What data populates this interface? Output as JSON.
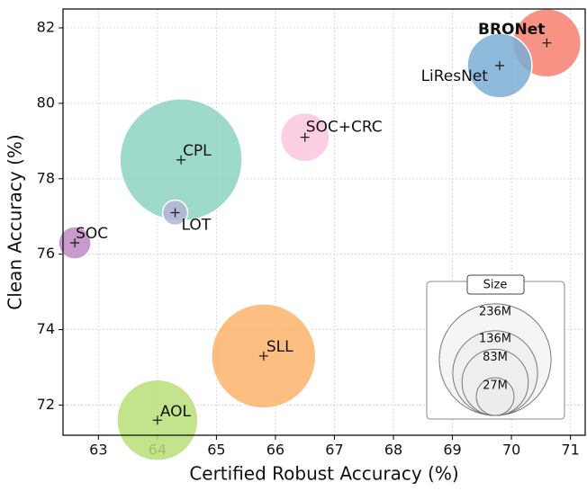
{
  "chart_data": {
    "type": "bubble",
    "xlabel": "Certified Robust Accuracy (%)",
    "ylabel": "Clean Accuracy (%)",
    "xlim": [
      62.4,
      71.25
    ],
    "ylim": [
      71.2,
      82.5
    ],
    "xticks": [
      63,
      64,
      65,
      66,
      67,
      68,
      69,
      70,
      71
    ],
    "yticks": [
      72,
      74,
      76,
      78,
      80,
      82
    ],
    "grid": true,
    "series": [
      {
        "name": "BRONet",
        "color": "#f67f70",
        "x": [
          70.6
        ],
        "values": [
          81.6
        ],
        "sizes": [
          88
        ]
      },
      {
        "name": "LiResNet",
        "color": "#7aaed6",
        "x": [
          69.8
        ],
        "values": [
          81.0
        ],
        "sizes": [
          79
        ]
      },
      {
        "name": "SOC+CRC",
        "color": "#fbc5df",
        "x": [
          66.5
        ],
        "values": [
          79.1
        ],
        "sizes": [
          45
        ]
      },
      {
        "name": "CPL",
        "color": "#8dd3c2",
        "x": [
          64.4
        ],
        "values": [
          78.5
        ],
        "sizes": [
          283
        ]
      },
      {
        "name": "LOT",
        "color": "#b4b3d6",
        "x": [
          64.3
        ],
        "values": [
          77.1
        ],
        "sizes": [
          12
        ]
      },
      {
        "name": "SOC",
        "color": "#c08ac4",
        "x": [
          62.6
        ],
        "values": [
          76.3
        ],
        "sizes": [
          20
        ]
      },
      {
        "name": "SLL",
        "color": "#fdb36b",
        "x": [
          65.8
        ],
        "values": [
          73.3
        ],
        "sizes": [
          206
        ]
      },
      {
        "name": "AOL",
        "color": "#b8de78",
        "x": [
          64.0
        ],
        "values": [
          71.6
        ],
        "sizes": [
          124
        ]
      }
    ],
    "size_legend": {
      "title": "Size",
      "items": [
        {
          "value": 236,
          "label": "236M"
        },
        {
          "value": 136,
          "label": "136M"
        },
        {
          "value": 83,
          "label": "83M"
        },
        {
          "value": 27,
          "label": "27M"
        }
      ]
    }
  }
}
